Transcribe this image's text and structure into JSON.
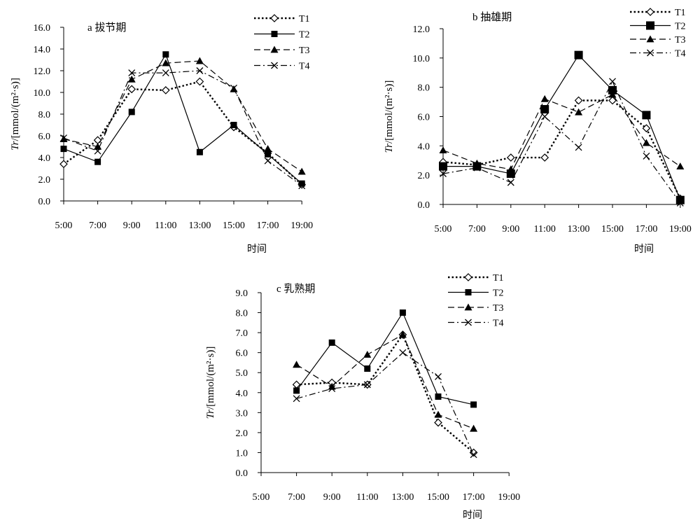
{
  "chart_data": [
    {
      "type": "line",
      "title": "a 拔节期",
      "xlabel": "时间",
      "ylabel": "Tr/[mmol/(m²·s)]",
      "categories": [
        "5:00",
        "7:00",
        "9:00",
        "11:00",
        "13:00",
        "15:00",
        "17:00",
        "19:00"
      ],
      "ylim": [
        0,
        16
      ],
      "yticks": [
        "0.0",
        "2.0",
        "4.0",
        "6.0",
        "8.0",
        "10.0",
        "12.0",
        "14.0",
        "16.0"
      ],
      "legend_position": "top-right",
      "series": [
        {
          "name": "T1",
          "values": [
            3.4,
            5.6,
            10.3,
            10.2,
            11.0,
            6.8,
            4.4,
            1.5
          ]
        },
        {
          "name": "T2",
          "values": [
            4.8,
            3.6,
            8.2,
            13.5,
            4.5,
            7.0,
            4.3,
            1.6
          ]
        },
        {
          "name": "T3",
          "values": [
            5.7,
            5.0,
            11.2,
            12.7,
            12.9,
            10.3,
            4.8,
            2.7
          ]
        },
        {
          "name": "T4",
          "values": [
            5.8,
            4.6,
            11.8,
            11.8,
            12.0,
            10.4,
            3.7,
            1.4
          ]
        }
      ]
    },
    {
      "type": "line",
      "title": "b 抽雄期",
      "xlabel": "时间",
      "ylabel": "Tr/[mmol/(m²·s)]",
      "categories": [
        "5:00",
        "7:00",
        "9:00",
        "11:00",
        "13:00",
        "15:00",
        "17:00",
        "19:00"
      ],
      "ylim": [
        0,
        12
      ],
      "yticks": [
        "0.0",
        "2.0",
        "4.0",
        "6.0",
        "8.0",
        "10.0",
        "12.0"
      ],
      "legend_position": "top-right",
      "series": [
        {
          "name": "T1",
          "values": [
            2.9,
            2.7,
            3.2,
            3.2,
            7.1,
            7.1,
            5.2,
            0.4
          ]
        },
        {
          "name": "T2",
          "values": [
            2.6,
            2.6,
            2.1,
            6.5,
            10.2,
            7.8,
            6.1,
            0.3
          ]
        },
        {
          "name": "T3",
          "values": [
            3.7,
            2.8,
            2.4,
            7.2,
            6.3,
            7.5,
            4.2,
            2.6
          ]
        },
        {
          "name": "T4",
          "values": [
            2.1,
            2.5,
            1.5,
            6.0,
            3.9,
            8.4,
            3.3,
            0.1
          ]
        }
      ]
    },
    {
      "type": "line",
      "title": "c 乳熟期",
      "xlabel": "时间",
      "ylabel": "Tr/[mmol/(m²·s)]",
      "categories": [
        "5:00",
        "7:00",
        "9:00",
        "11:00",
        "13:00",
        "15:00",
        "17:00",
        "19:00"
      ],
      "ylim": [
        0,
        9
      ],
      "yticks": [
        "0.0",
        "1.0",
        "2.0",
        "3.0",
        "4.0",
        "5.0",
        "6.0",
        "7.0",
        "8.0",
        "9.0"
      ],
      "legend_position": "top-right",
      "series": [
        {
          "name": "T1",
          "values": [
            null,
            4.4,
            4.5,
            4.4,
            6.9,
            2.5,
            1.0,
            null
          ]
        },
        {
          "name": "T2",
          "values": [
            null,
            4.1,
            6.5,
            5.2,
            8.0,
            3.8,
            3.4,
            null
          ]
        },
        {
          "name": "T3",
          "values": [
            null,
            5.4,
            4.3,
            5.9,
            6.9,
            2.9,
            2.2,
            null
          ]
        },
        {
          "name": "T4",
          "values": [
            null,
            3.7,
            4.2,
            4.4,
            6.0,
            4.8,
            0.9,
            null
          ]
        }
      ]
    }
  ]
}
